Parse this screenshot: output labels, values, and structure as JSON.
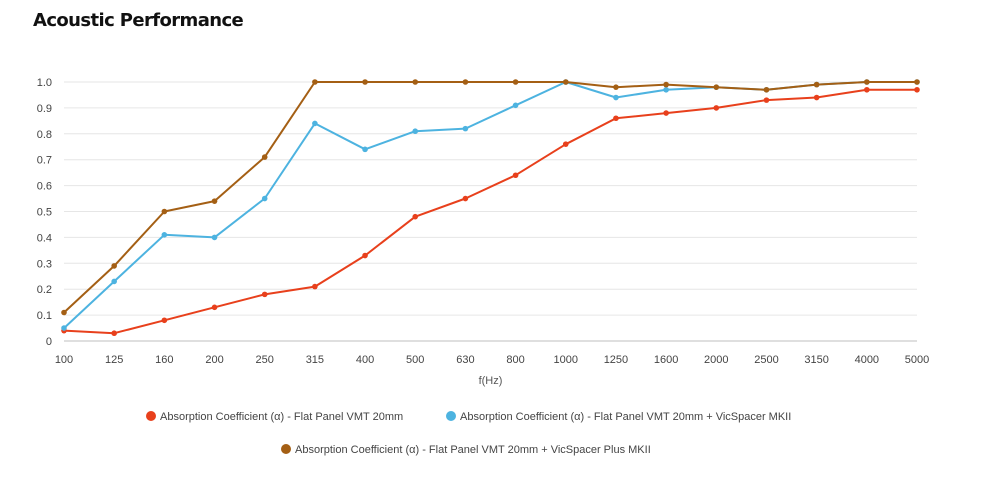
{
  "title": "Acoustic Performance",
  "chart_data": {
    "type": "line",
    "categories": [
      "100",
      "125",
      "160",
      "200",
      "250",
      "315",
      "400",
      "500",
      "630",
      "800",
      "1000",
      "1250",
      "1600",
      "2000",
      "2500",
      "3150",
      "4000",
      "5000"
    ],
    "xlabel": "f(Hz)",
    "ylabel": "",
    "ylim": [
      0,
      1.0
    ],
    "yticks": [
      "0",
      "0.1",
      "0.2",
      "0.3",
      "0.4",
      "0.5",
      "0.6",
      "0.7",
      "0.8",
      "0.9",
      "1.0"
    ],
    "grid": "horizontal",
    "legend_position": "bottom",
    "series": [
      {
        "name": "Absorption Coefficient (α) - Flat Panel VMT 20mm",
        "color": "#e8401c",
        "values": [
          0.04,
          0.03,
          0.08,
          0.13,
          0.18,
          0.21,
          0.33,
          0.48,
          0.55,
          0.64,
          0.76,
          0.86,
          0.88,
          0.9,
          0.93,
          0.94,
          0.97,
          0.97
        ]
      },
      {
        "name": "Absorption Coefficient (α) - Flat Panel VMT 20mm + VicSpacer MKII",
        "color": "#4db3e0",
        "values": [
          0.05,
          0.23,
          0.41,
          0.4,
          0.55,
          0.84,
          0.74,
          0.81,
          0.82,
          0.91,
          1.0,
          0.94,
          0.97,
          0.98,
          0.97,
          0.99,
          1.0,
          1.0
        ]
      },
      {
        "name": "Absorption Coefficient (α) - Flat Panel VMT 20mm + VicSpacer Plus MKII",
        "color": "#a45f14",
        "values": [
          0.11,
          0.29,
          0.5,
          0.54,
          0.71,
          1.0,
          1.0,
          1.0,
          1.0,
          1.0,
          1.0,
          0.98,
          0.99,
          0.98,
          0.97,
          0.99,
          1.0,
          1.0
        ]
      }
    ]
  }
}
